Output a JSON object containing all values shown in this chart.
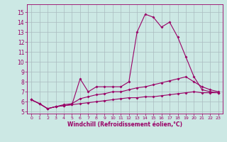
{
  "xlabel": "Windchill (Refroidissement éolien,°C)",
  "bg_color": "#cce8e4",
  "grid_color": "#aabbc0",
  "line_color": "#990066",
  "x": [
    0,
    1,
    2,
    3,
    4,
    5,
    6,
    7,
    8,
    9,
    10,
    11,
    12,
    13,
    14,
    15,
    16,
    17,
    18,
    19,
    20,
    21,
    22,
    23
  ],
  "line1": [
    6.2,
    5.8,
    5.3,
    5.5,
    5.6,
    5.7,
    8.3,
    7.0,
    7.5,
    7.5,
    7.5,
    7.5,
    8.0,
    13.0,
    14.8,
    14.5,
    13.5,
    14.0,
    12.5,
    10.5,
    8.5,
    7.2,
    7.0,
    6.9
  ],
  "line2": [
    6.2,
    5.8,
    5.3,
    5.5,
    5.7,
    5.8,
    6.3,
    6.5,
    6.7,
    6.8,
    7.0,
    7.0,
    7.2,
    7.4,
    7.5,
    7.7,
    7.9,
    8.1,
    8.3,
    8.5,
    8.0,
    7.5,
    7.2,
    7.0
  ],
  "line3": [
    6.2,
    5.8,
    5.3,
    5.5,
    5.6,
    5.7,
    5.8,
    5.9,
    6.0,
    6.1,
    6.2,
    6.3,
    6.4,
    6.4,
    6.5,
    6.5,
    6.6,
    6.7,
    6.8,
    6.9,
    7.0,
    6.9,
    6.9,
    6.9
  ],
  "ylim": [
    4.8,
    15.8
  ],
  "yticks": [
    5,
    6,
    7,
    8,
    9,
    10,
    11,
    12,
    13,
    14,
    15
  ],
  "xticks": [
    0,
    1,
    2,
    3,
    4,
    5,
    6,
    7,
    8,
    9,
    10,
    11,
    12,
    13,
    14,
    15,
    16,
    17,
    18,
    19,
    20,
    21,
    22,
    23
  ]
}
